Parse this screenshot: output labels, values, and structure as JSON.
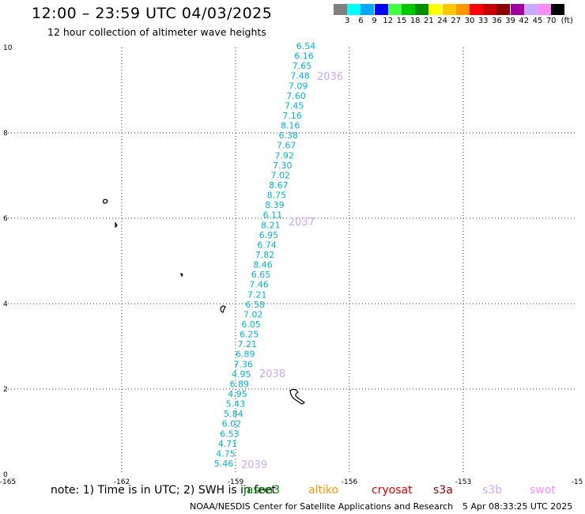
{
  "header": {
    "title": "12:00 – 23:59 UTC 04/03/2025",
    "subtitle": "12 hour collection of altimeter wave heights"
  },
  "legend": {
    "colors": [
      "#808080",
      "#00ffff",
      "#00a8ff",
      "#0000ff",
      "#44ff44",
      "#00c800",
      "#008c00",
      "#ffff00",
      "#ffc800",
      "#ff9600",
      "#ff0000",
      "#c80000",
      "#8c0000",
      "#a000a0",
      "#c8aaff",
      "#ff8cff",
      "#000000"
    ],
    "labels": [
      "3",
      "6",
      "9",
      "12",
      "15",
      "18",
      "21",
      "24",
      "27",
      "30",
      "33",
      "36",
      "39",
      "42",
      "45",
      "70"
    ],
    "unit": "(ft)"
  },
  "axes": {
    "x_ticks": [
      "-165",
      "-162",
      "-159",
      "-156",
      "-153",
      "-15"
    ],
    "y_ticks": [
      "0",
      "2",
      "4",
      "6",
      "8",
      "10"
    ]
  },
  "track": {
    "color": "#00b4d8",
    "values": [
      "6.54",
      "6.16",
      "7.65",
      "7.48",
      "7.09",
      "7.60",
      "7.45",
      "7.16",
      "8.16",
      "6.38",
      "7.67",
      "7.92",
      "7.30",
      "7.02",
      "8.67",
      "8.75",
      "8.39",
      "6.11",
      "8.21",
      "6.95",
      "6.74",
      "7.82",
      "8.46",
      "6.65",
      "7.46",
      "7.21",
      "6.58",
      "7.02",
      "6.05",
      "6.25",
      "7.21",
      "6.89",
      "7.36",
      "4.95",
      "6.89",
      "4.95",
      "5.43",
      "5.84",
      "6.02",
      "6.53",
      "4.71",
      "4.75",
      "5.46"
    ],
    "time_labels": [
      "2036",
      "2037",
      "2038",
      "2039"
    ],
    "time_label_color": "#c8aaff"
  },
  "notes": {
    "note": "note: 1) Time is in UTC; 2) SWH is in feet",
    "satellites": [
      {
        "name": "jason3",
        "color": "#008c00"
      },
      {
        "name": "altiko",
        "color": "#ff9600"
      },
      {
        "name": "cryosat",
        "color": "#e00000"
      },
      {
        "name": "s3a",
        "color": "#8c0000"
      },
      {
        "name": "s3b",
        "color": "#c8aaff"
      },
      {
        "name": "swot",
        "color": "#ff8cff"
      }
    ],
    "credit": "NOAA/NESDIS Center for Satellite Applications and Research",
    "timestamp": "5 Apr 08:33:25 UTC 2025"
  }
}
